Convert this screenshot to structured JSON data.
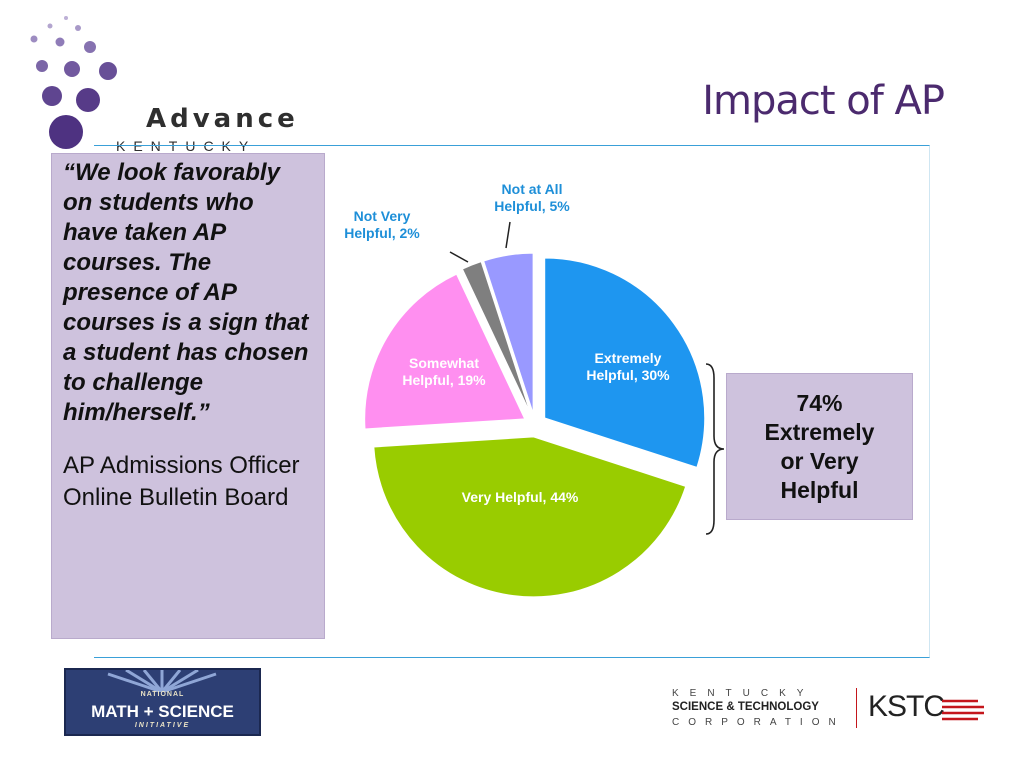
{
  "logo": {
    "name": "Advance",
    "tagline": "KENTUCKY"
  },
  "title": "Impact of AP",
  "quote": "“We look favorably on students who have taken AP courses.  The presence of AP courses is a sign that a student has chosen to challenge him/herself.”",
  "quote_source": "AP Admissions Officer Online Bulletin Board",
  "summary": "74%\nExtremely\nor Very\nHelpful",
  "footer": {
    "nmsi": {
      "national": "NATIONAL",
      "main": "MATH + SCIENCE",
      "initiative": "INITIATIVE"
    },
    "kstc": {
      "line1": "KENTUCKY",
      "line2": "SCIENCE & TECHNOLOGY",
      "line3": "CORPORATION",
      "abbr": "KSTC"
    }
  },
  "colors": {
    "accent_title": "#4b2a6e",
    "box_fill": "#cec2dd",
    "extremely": "#1e96f0",
    "very": "#99cc00",
    "somewhat": "#ff8ff0",
    "not_very": "#7f7f7f",
    "not_at_all": "#9999ff"
  },
  "chart_data": {
    "type": "pie",
    "title": "",
    "slices": [
      {
        "label": "Extremely Helpful",
        "value": 30,
        "display": [
          "Extremely",
          "Helpful, 30%"
        ],
        "color": "#1e96f0",
        "label_color": "#ffffff"
      },
      {
        "label": "Very Helpful",
        "value": 44,
        "display": [
          "Very Helpful, 44%"
        ],
        "color": "#99cc00",
        "label_color": "#ffffff"
      },
      {
        "label": "Somewhat Helpful",
        "value": 19,
        "display": [
          "Somewhat",
          "Helpful, 19%"
        ],
        "color": "#ff8ff0",
        "label_color": "#ffffff"
      },
      {
        "label": "Not Very Helpful",
        "value": 2,
        "display": [
          "Not Very",
          "Helpful, 2%"
        ],
        "color": "#7f7f7f",
        "label_color": "#1e8fd8"
      },
      {
        "label": "Not at All Helpful",
        "value": 5,
        "display": [
          "Not at All",
          "Helpful, 5%"
        ],
        "color": "#9999ff",
        "label_color": "#1e8fd8"
      }
    ],
    "exploded": true,
    "legend": "none"
  }
}
